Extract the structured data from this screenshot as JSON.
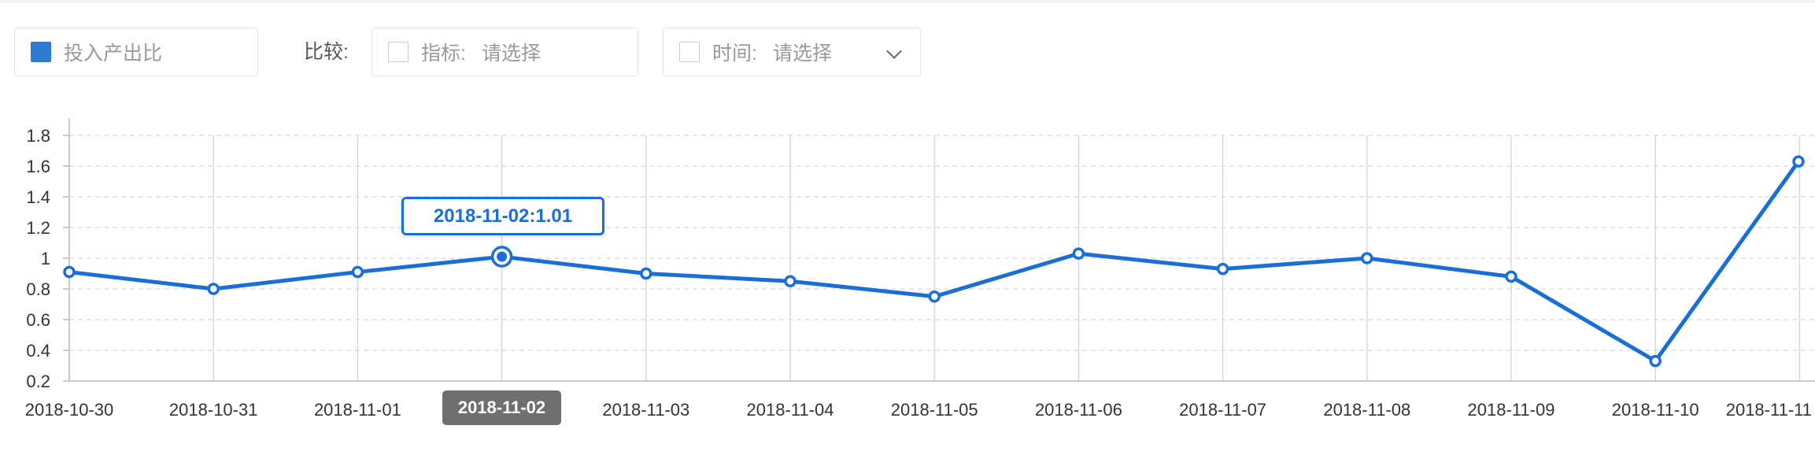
{
  "toolbar": {
    "metric_label": "投入产出比",
    "metric_checked": true,
    "compare_label": "比较:",
    "indicator_label": "指标:",
    "indicator_placeholder": "请选择",
    "time_label": "时间:",
    "time_placeholder": "请选择"
  },
  "tooltip": {
    "text": "2018-11-02:1.01"
  },
  "highlighted_x_label": "2018-11-02",
  "colors": {
    "line": "#1a6ed8",
    "checkbox_checked": "#2b7bd3",
    "highlight_bg": "#6f6f6f"
  },
  "chart_data": {
    "type": "line",
    "x": [
      "2018-10-30",
      "2018-10-31",
      "2018-11-01",
      "2018-11-02",
      "2018-11-03",
      "2018-11-04",
      "2018-11-05",
      "2018-11-06",
      "2018-11-07",
      "2018-11-08",
      "2018-11-09",
      "2018-11-10",
      "2018-11-11"
    ],
    "series": [
      {
        "values": [
          0.91,
          0.8,
          0.91,
          1.01,
          0.9,
          0.85,
          0.75,
          1.03,
          0.93,
          1.0,
          0.88,
          0.33,
          1.63
        ]
      }
    ],
    "yticks": [
      0.2,
      0.4,
      0.6,
      0.8,
      1,
      1.2,
      1.4,
      1.6,
      1.8
    ],
    "ylim": [
      0.2,
      1.8
    ],
    "highlight_index": 3,
    "grid": true,
    "vertical_grid": true
  }
}
